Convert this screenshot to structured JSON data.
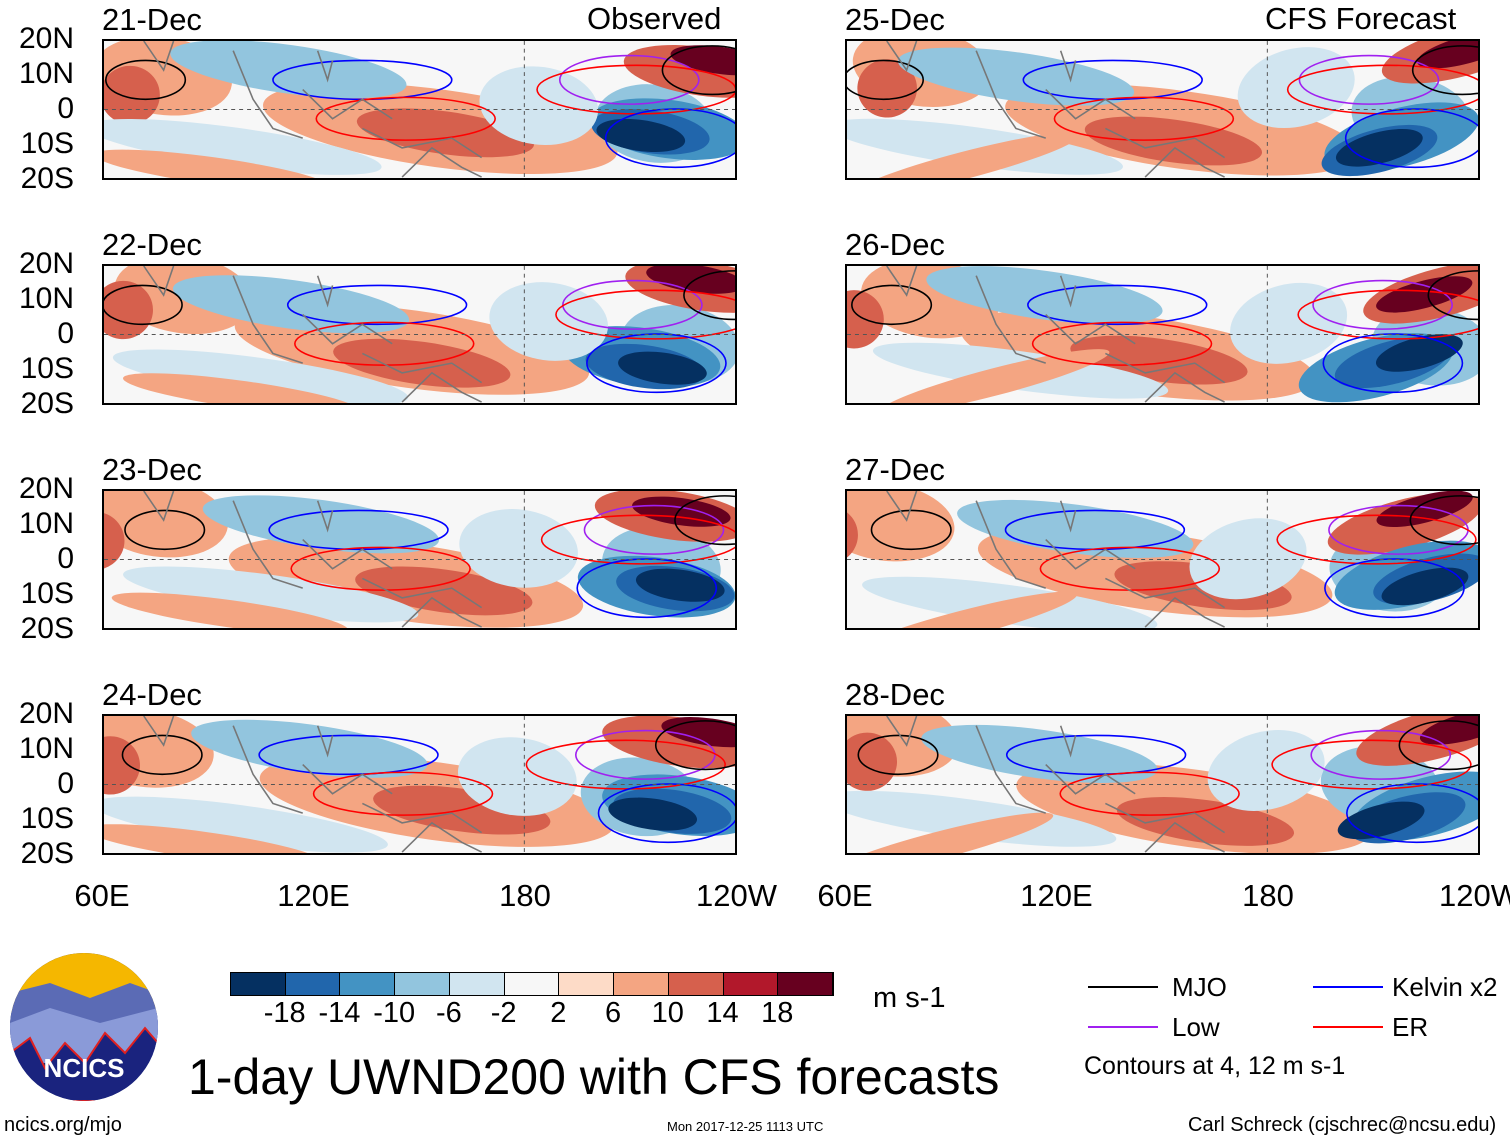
{
  "header": {
    "left_title": "Observed",
    "right_title": "CFS Forecast"
  },
  "panels": [
    {
      "date": "21-Dec",
      "group": "observed"
    },
    {
      "date": "22-Dec",
      "group": "observed"
    },
    {
      "date": "23-Dec",
      "group": "observed"
    },
    {
      "date": "24-Dec",
      "group": "observed"
    },
    {
      "date": "25-Dec",
      "group": "forecast"
    },
    {
      "date": "26-Dec",
      "group": "forecast"
    },
    {
      "date": "27-Dec",
      "group": "forecast"
    },
    {
      "date": "28-Dec",
      "group": "forecast"
    }
  ],
  "lat_labels": [
    "20N",
    "10N",
    "0",
    "10S",
    "20S"
  ],
  "lon_labels": [
    "60E",
    "120E",
    "180",
    "120W"
  ],
  "colorbar": {
    "labels": [
      "-18",
      "-14",
      "-10",
      "-6",
      "-2",
      "2",
      "6",
      "10",
      "14",
      "18"
    ],
    "colors": [
      "#053061",
      "#2166ac",
      "#4393c3",
      "#92c5de",
      "#d1e5f0",
      "#f7f7f7",
      "#fddbc7",
      "#f4a582",
      "#d6604d",
      "#b2182b",
      "#67001f"
    ],
    "units": "m s-1"
  },
  "legend": {
    "items": [
      {
        "label": "MJO",
        "color": "#000000"
      },
      {
        "label": "Kelvin x2",
        "color": "#0000ff"
      },
      {
        "label": "Low",
        "color": "#a020f0"
      },
      {
        "label": "ER",
        "color": "#ff0000"
      }
    ],
    "note": "Contours at 4, 12 m s-1"
  },
  "footer": {
    "title": "1-day UWND200 with CFS forecasts",
    "logo_text": "NCICS",
    "url": "ncics.org/mjo",
    "timestamp": "Mon 2017-12-25 1113 UTC",
    "credit": "Carl Schreck (cjschrec@ncsu.edu)"
  }
}
